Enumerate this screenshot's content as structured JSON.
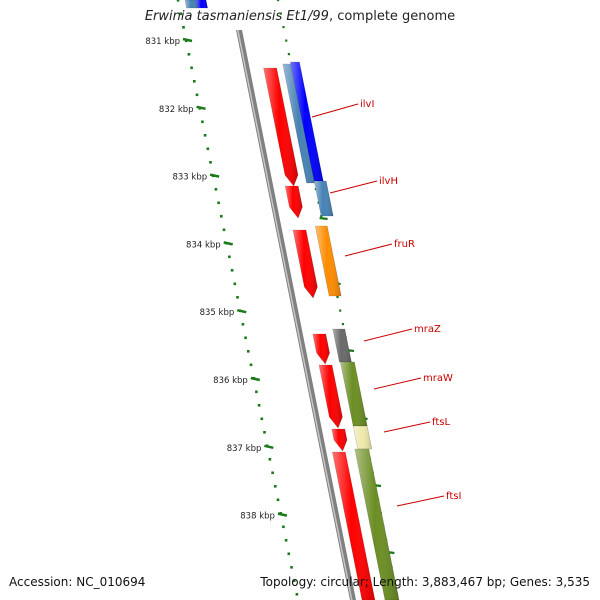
{
  "title": {
    "species": "Erwinia tasmaniensis Et1/99",
    "suffix": ", complete genome"
  },
  "footer": {
    "accession_label": "Accession:",
    "accession": "NC_010694",
    "topology_text": "Topology: circular; Length: 3,883,467 bp; Genes: 3,535"
  },
  "ruler": {
    "ticks": [
      {
        "label": "831 kbp",
        "kbp": 831
      },
      {
        "label": "832 kbp",
        "kbp": 832
      },
      {
        "label": "833 kbp",
        "kbp": 833
      },
      {
        "label": "834 kbp",
        "kbp": 834
      },
      {
        "label": "835 kbp",
        "kbp": 835
      },
      {
        "label": "836 kbp",
        "kbp": 836
      },
      {
        "label": "837 kbp",
        "kbp": 837
      },
      {
        "label": "838 kbp",
        "kbp": 838
      }
    ],
    "tick_color": "#1a7a1a"
  },
  "genes": [
    {
      "name": "ilvI",
      "cds_color": "#ff0000",
      "gene_color": "#0000ff"
    },
    {
      "name": "ilvH",
      "cds_color": "#ff0000",
      "gene_color": "#4682b4"
    },
    {
      "name": "fruR",
      "cds_color": "#ff0000",
      "gene_color": "#ff8c00"
    },
    {
      "name": "mraZ",
      "cds_color": "#ff0000",
      "gene_color": "#696969"
    },
    {
      "name": "mraW",
      "cds_color": "#ff0000",
      "gene_color": "#6b8e23"
    },
    {
      "name": "ftsL",
      "cds_color": "#ff0000",
      "gene_color": "#eee8aa"
    },
    {
      "name": "ftsI",
      "cds_color": "#ff0000",
      "gene_color": "#6b8e23"
    }
  ],
  "label_color": "#cc0000",
  "backbone_color": "#808080"
}
